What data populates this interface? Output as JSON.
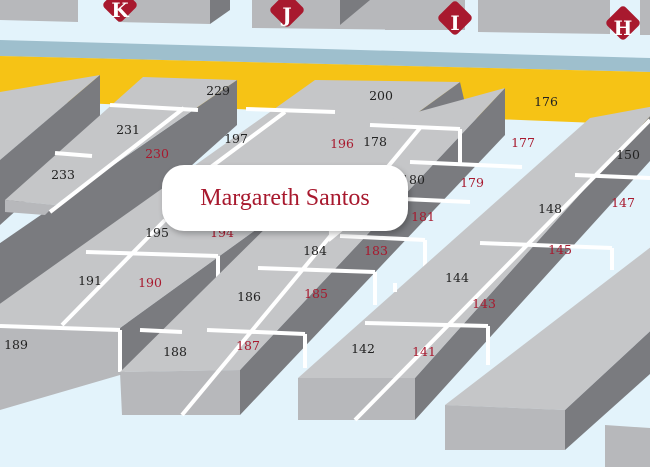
{
  "colors": {
    "background": "#e3f3fb",
    "walkway_band": "#9ebfcd",
    "highlight_band": "#f6c315",
    "booth_top": "#c5c6c8",
    "booth_side": "#7a7b7f",
    "marker": "#a8192e",
    "highlight_text": "#a8192e"
  },
  "aisle_markers": [
    "K",
    "J",
    "I",
    "H"
  ],
  "callout": {
    "name": "Margareth Santos"
  },
  "booths": [
    {
      "number": "229",
      "highlighted": false
    },
    {
      "number": "231",
      "highlighted": false
    },
    {
      "number": "233",
      "highlighted": false
    },
    {
      "number": "230",
      "highlighted": true
    },
    {
      "number": "200",
      "highlighted": false
    },
    {
      "number": "197",
      "highlighted": false
    },
    {
      "number": "196",
      "highlighted": true
    },
    {
      "number": "195",
      "highlighted": false
    },
    {
      "number": "194",
      "highlighted": true
    },
    {
      "number": "191",
      "highlighted": false
    },
    {
      "number": "190",
      "highlighted": true
    },
    {
      "number": "189",
      "highlighted": false
    },
    {
      "number": "176",
      "highlighted": false
    },
    {
      "number": "178",
      "highlighted": false
    },
    {
      "number": "177",
      "highlighted": true
    },
    {
      "number": "180",
      "highlighted": false
    },
    {
      "number": "179",
      "highlighted": true
    },
    {
      "number": "181",
      "highlighted": true
    },
    {
      "number": "184",
      "highlighted": false
    },
    {
      "number": "183",
      "highlighted": true
    },
    {
      "number": "186",
      "highlighted": false
    },
    {
      "number": "185",
      "highlighted": true
    },
    {
      "number": "188",
      "highlighted": false
    },
    {
      "number": "187",
      "highlighted": true
    },
    {
      "number": "150",
      "highlighted": false
    },
    {
      "number": "147",
      "highlighted": true
    },
    {
      "number": "148",
      "highlighted": false
    },
    {
      "number": "145",
      "highlighted": true
    },
    {
      "number": "144",
      "highlighted": false
    },
    {
      "number": "143",
      "highlighted": true
    },
    {
      "number": "142",
      "highlighted": false
    },
    {
      "number": "141",
      "highlighted": true
    }
  ]
}
